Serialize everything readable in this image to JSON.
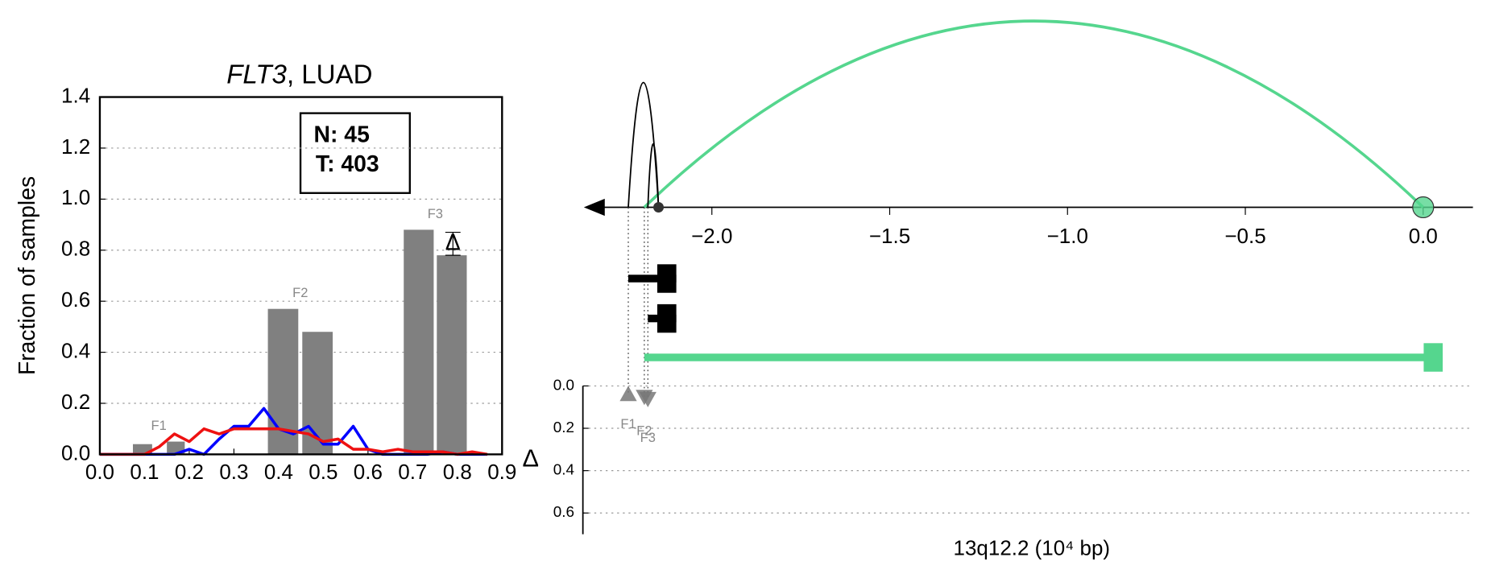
{
  "chart_data": [
    {
      "type": "bar",
      "title_parts": [
        "FLT3",
        ", LUAD"
      ],
      "ylabel": "Fraction of samples",
      "xlim": [
        0,
        0.9
      ],
      "xticks": [
        {
          "value": 0,
          "label": "0.0"
        },
        0.1,
        0.2,
        0.3,
        0.4,
        0.5,
        0.6,
        0.7,
        0.8,
        0.9
      ],
      "ylim": [
        0,
        1.4
      ],
      "yticks": [
        {
          "value": 0,
          "label": "0.0"
        },
        0.2,
        0.4,
        0.6,
        0.8,
        {
          "value": 1,
          "label": "1.0"
        },
        1.2,
        1.4
      ],
      "grid": true,
      "info_box": [
        "N: 45",
        "T: 403"
      ],
      "bars": {
        "x0": [
          0.074,
          0.15,
          0.376,
          0.453,
          0.68,
          0.754
        ],
        "x1": [
          0.117,
          0.19,
          0.444,
          0.521,
          0.747,
          0.821
        ],
        "values": [
          0.04,
          0.05,
          0.57,
          0.48,
          0.88,
          0.78
        ],
        "color": "#808080"
      },
      "group_labels": [
        "F1",
        "F2",
        "F3"
      ],
      "groups": [
        [
          0,
          1
        ],
        [
          2,
          3
        ],
        [
          4,
          5
        ]
      ],
      "delta": {
        "label": "Δ",
        "x": 0.79,
        "value": 0.825,
        "err": 0.045
      },
      "x": [
        0,
        0.05,
        0.1,
        0.133,
        0.167,
        0.2,
        0.233,
        0.267,
        0.3,
        0.333,
        0.367,
        0.4,
        0.433,
        0.467,
        0.5,
        0.533,
        0.567,
        0.6,
        0.633,
        0.667,
        0.7,
        0.733,
        0.767,
        0.8,
        0.833,
        0.867
      ],
      "series": [
        {
          "color": "#0000ff",
          "values": [
            0,
            0,
            0,
            0,
            0,
            0.02,
            0,
            0.06,
            0.11,
            0.11,
            0.18,
            0.1,
            0.08,
            0.11,
            0.04,
            0.04,
            0.11,
            0.02,
            0,
            0,
            0,
            0,
            0.01,
            0,
            0,
            0
          ]
        },
        {
          "color": "#ee1111",
          "values": [
            0,
            0,
            0,
            0.03,
            0.08,
            0.05,
            0.1,
            0.08,
            0.1,
            0.1,
            0.1,
            0.1,
            0.09,
            0.08,
            0.05,
            0.06,
            0.02,
            0.02,
            0.01,
            0.02,
            0.01,
            0.01,
            0.01,
            0,
            0.01,
            0
          ]
        }
      ]
    },
    {
      "type": "arc",
      "xlim": [
        -2.36,
        0.14
      ],
      "xticks": [
        {
          "value": -2,
          "label": "−2.0"
        },
        {
          "value": -1.5,
          "label": "−1.5"
        },
        {
          "value": -1,
          "label": "−1.0"
        },
        {
          "value": -0.5,
          "label": "−0.5"
        },
        {
          "value": 0,
          "label": "0.0"
        }
      ],
      "arcs": [
        {
          "start": -2.19,
          "end": 0,
          "height": 1,
          "color": "#55d68e"
        },
        {
          "start": -2.235,
          "end": -2.15,
          "height": 0.67,
          "color": "#000000"
        },
        {
          "start": -2.18,
          "end": -2.15,
          "height": 0.34,
          "color": "#000000"
        }
      ],
      "anchors": [
        {
          "x": -2.15,
          "color": "#333333"
        },
        {
          "x": 0,
          "color": "#55d68e"
        }
      ],
      "genes": [
        {
          "start": -2.235,
          "end": -2.1,
          "color": "#000000"
        },
        {
          "start": -2.18,
          "end": -2.1,
          "color": "#000000"
        },
        {
          "start": -2.19,
          "end": 0.055,
          "color": "#55d68e"
        }
      ],
      "ylabel": "Δ",
      "xlabel": "13q12.2 (10⁴ bp)",
      "ylim": [
        0,
        0.7
      ],
      "y_inverted": true,
      "yticks": [
        {
          "value": 0,
          "label": "0.0"
        },
        0.2,
        0.4,
        0.6
      ],
      "markers": {
        "x": [
          -2.235,
          -2.19,
          -2.18
        ],
        "values": [
          0.04,
          0.05,
          0.06
        ],
        "labels": [
          "F1",
          "F2",
          "F3"
        ],
        "shapes": [
          "up",
          "down",
          "down"
        ],
        "color": "#777777"
      }
    }
  ]
}
